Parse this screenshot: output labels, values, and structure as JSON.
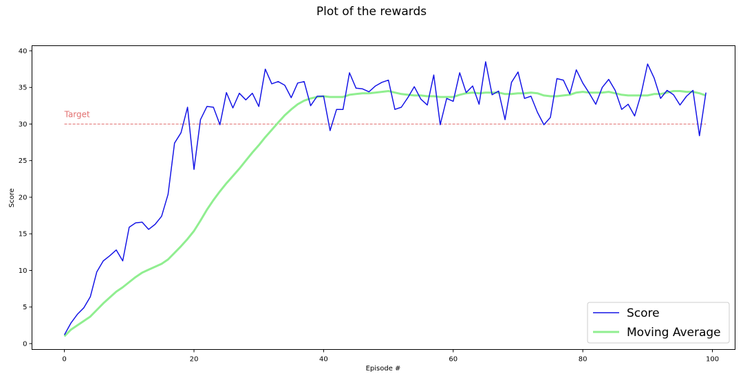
{
  "chart_data": {
    "type": "line",
    "title": "Plot of the rewards",
    "xlabel": "Episode #",
    "ylabel": "Score",
    "xlim": [
      -5,
      103.5
    ],
    "ylim": [
      -0.8,
      40.7
    ],
    "xticks": [
      0,
      20,
      40,
      60,
      80,
      100
    ],
    "yticks": [
      0,
      5,
      10,
      15,
      20,
      25,
      30,
      35,
      40
    ],
    "grid": false,
    "legend_position": "lower-right",
    "x": [
      0,
      1,
      2,
      3,
      4,
      5,
      6,
      7,
      8,
      9,
      10,
      11,
      12,
      13,
      14,
      15,
      16,
      17,
      18,
      19,
      20,
      21,
      22,
      23,
      24,
      25,
      26,
      27,
      28,
      29,
      30,
      31,
      32,
      33,
      34,
      35,
      36,
      37,
      38,
      39,
      40,
      41,
      42,
      43,
      44,
      45,
      46,
      47,
      48,
      49,
      50,
      51,
      52,
      53,
      54,
      55,
      56,
      57,
      58,
      59,
      60,
      61,
      62,
      63,
      64,
      65,
      66,
      67,
      68,
      69,
      70,
      71,
      72,
      73,
      74,
      75,
      76,
      77,
      78,
      79,
      80,
      81,
      82,
      83,
      84,
      85,
      86,
      87,
      88,
      89,
      90,
      91,
      92,
      93,
      94,
      95,
      96,
      97,
      98,
      99
    ],
    "series": [
      {
        "name": "Score",
        "color": "#1414e6",
        "values": [
          1.2,
          2.8,
          4.0,
          4.9,
          6.4,
          9.8,
          11.3,
          12.0,
          12.8,
          11.3,
          15.9,
          16.5,
          16.6,
          15.6,
          16.3,
          17.4,
          20.4,
          27.4,
          28.8,
          32.3,
          23.8,
          30.6,
          32.4,
          32.3,
          29.9,
          34.3,
          32.2,
          34.2,
          33.3,
          34.2,
          32.4,
          37.5,
          35.5,
          35.8,
          35.3,
          33.6,
          35.6,
          35.8,
          32.5,
          33.8,
          33.8,
          29.1,
          32.0,
          32.0,
          37.0,
          34.9,
          34.8,
          34.4,
          35.2,
          35.7,
          36.0,
          32.0,
          32.3,
          33.6,
          35.1,
          33.4,
          32.6,
          36.7,
          29.9,
          33.5,
          33.1,
          37.0,
          34.3,
          35.2,
          32.7,
          38.5,
          34.0,
          34.5,
          30.6,
          35.7,
          37.1,
          33.5,
          33.8,
          31.6,
          29.9,
          30.9,
          36.2,
          36.0,
          34.1,
          37.4,
          35.6,
          34.2,
          32.7,
          35.0,
          36.1,
          34.6,
          32.0,
          32.7,
          31.1,
          34.1,
          38.2,
          36.3,
          33.5,
          34.6,
          34.0,
          32.6,
          33.8,
          34.6,
          28.4,
          34.3
        ]
      },
      {
        "name": "Moving Average",
        "color": "#90ee90",
        "values": [
          1.0,
          1.9,
          2.5,
          3.1,
          3.7,
          4.6,
          5.5,
          6.3,
          7.1,
          7.7,
          8.4,
          9.1,
          9.7,
          10.1,
          10.5,
          10.9,
          11.5,
          12.4,
          13.3,
          14.3,
          15.4,
          16.8,
          18.3,
          19.6,
          20.8,
          21.9,
          22.9,
          23.9,
          25.0,
          26.1,
          27.1,
          28.2,
          29.2,
          30.2,
          31.2,
          32.0,
          32.7,
          33.2,
          33.5,
          33.7,
          33.8,
          33.7,
          33.7,
          33.7,
          34.0,
          34.1,
          34.2,
          34.2,
          34.3,
          34.4,
          34.5,
          34.3,
          34.1,
          34.0,
          33.9,
          33.9,
          33.8,
          33.8,
          33.7,
          33.7,
          33.7,
          34.0,
          34.2,
          34.3,
          34.2,
          34.3,
          34.3,
          34.3,
          34.1,
          34.1,
          34.2,
          34.2,
          34.3,
          34.2,
          33.9,
          33.8,
          33.8,
          33.9,
          34.0,
          34.3,
          34.4,
          34.3,
          34.3,
          34.3,
          34.4,
          34.2,
          34.0,
          33.9,
          33.9,
          33.9,
          33.9,
          34.1,
          34.1,
          34.3,
          34.5,
          34.5,
          34.4,
          34.4,
          34.2,
          33.9
        ]
      }
    ],
    "reference_line": {
      "label": "Target",
      "y": 30,
      "x_range": [
        0,
        99
      ],
      "color": "#e27070"
    }
  }
}
